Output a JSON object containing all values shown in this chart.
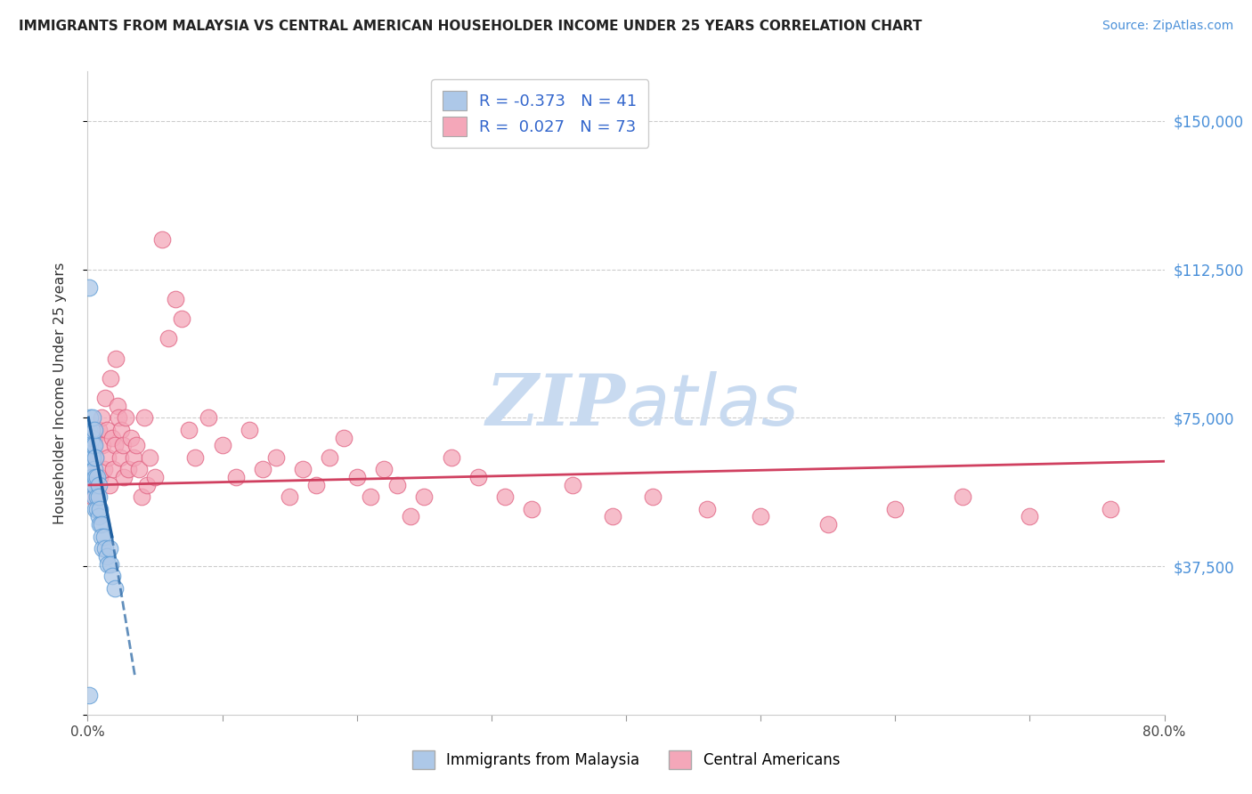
{
  "title": "IMMIGRANTS FROM MALAYSIA VS CENTRAL AMERICAN HOUSEHOLDER INCOME UNDER 25 YEARS CORRELATION CHART",
  "source": "Source: ZipAtlas.com",
  "ylabel": "Householder Income Under 25 years",
  "xlim": [
    0.0,
    0.8
  ],
  "ylim": [
    0,
    162500
  ],
  "yticks": [
    0,
    37500,
    75000,
    112500,
    150000
  ],
  "ytick_labels": [
    "",
    "$37,500",
    "$75,000",
    "$112,500",
    "$150,000"
  ],
  "gridline_y": [
    37500,
    75000,
    112500,
    150000
  ],
  "r_malaysia": -0.373,
  "n_malaysia": 41,
  "r_central": 0.027,
  "n_central": 73,
  "malaysia_color": "#adc8e8",
  "malaysia_edge": "#5b9bd5",
  "central_color": "#f4a7b9",
  "central_edge": "#e06080",
  "trend_malaysia_color": "#2060a0",
  "trend_central_color": "#d04060",
  "right_axis_color": "#4a90d9",
  "source_color": "#4a90d9",
  "watermark_color": "#c8daf0",
  "malaysia_scatter_x": [
    0.001,
    0.001,
    0.002,
    0.002,
    0.002,
    0.003,
    0.003,
    0.003,
    0.003,
    0.004,
    0.004,
    0.004,
    0.004,
    0.005,
    0.005,
    0.005,
    0.005,
    0.005,
    0.006,
    0.006,
    0.006,
    0.007,
    0.007,
    0.007,
    0.008,
    0.008,
    0.008,
    0.009,
    0.009,
    0.01,
    0.01,
    0.011,
    0.012,
    0.013,
    0.014,
    0.015,
    0.016,
    0.017,
    0.018,
    0.02,
    0.001
  ],
  "malaysia_scatter_y": [
    108000,
    72000,
    68000,
    75000,
    62000,
    65000,
    70000,
    60000,
    72000,
    58000,
    65000,
    68000,
    75000,
    62000,
    55000,
    68000,
    72000,
    58000,
    52000,
    60000,
    65000,
    55000,
    60000,
    52000,
    50000,
    58000,
    55000,
    48000,
    52000,
    48000,
    45000,
    42000,
    45000,
    42000,
    40000,
    38000,
    42000,
    38000,
    35000,
    32000,
    5000
  ],
  "central_scatter_x": [
    0.003,
    0.004,
    0.005,
    0.006,
    0.007,
    0.008,
    0.009,
    0.01,
    0.011,
    0.012,
    0.013,
    0.014,
    0.015,
    0.016,
    0.017,
    0.018,
    0.019,
    0.02,
    0.021,
    0.022,
    0.023,
    0.024,
    0.025,
    0.026,
    0.027,
    0.028,
    0.03,
    0.032,
    0.034,
    0.036,
    0.038,
    0.04,
    0.042,
    0.044,
    0.046,
    0.05,
    0.055,
    0.06,
    0.065,
    0.07,
    0.075,
    0.08,
    0.09,
    0.1,
    0.11,
    0.12,
    0.13,
    0.14,
    0.15,
    0.16,
    0.17,
    0.18,
    0.19,
    0.2,
    0.21,
    0.22,
    0.23,
    0.24,
    0.25,
    0.27,
    0.29,
    0.31,
    0.33,
    0.36,
    0.39,
    0.42,
    0.46,
    0.5,
    0.55,
    0.6,
    0.65,
    0.7,
    0.76
  ],
  "central_scatter_y": [
    62000,
    55000,
    70000,
    65000,
    58000,
    72000,
    60000,
    75000,
    68000,
    62000,
    80000,
    72000,
    65000,
    58000,
    85000,
    70000,
    62000,
    68000,
    90000,
    78000,
    75000,
    65000,
    72000,
    68000,
    60000,
    75000,
    62000,
    70000,
    65000,
    68000,
    62000,
    55000,
    75000,
    58000,
    65000,
    60000,
    120000,
    95000,
    105000,
    100000,
    72000,
    65000,
    75000,
    68000,
    60000,
    72000,
    62000,
    65000,
    55000,
    62000,
    58000,
    65000,
    70000,
    60000,
    55000,
    62000,
    58000,
    50000,
    55000,
    65000,
    60000,
    55000,
    52000,
    58000,
    50000,
    55000,
    52000,
    50000,
    48000,
    52000,
    55000,
    50000,
    52000
  ]
}
